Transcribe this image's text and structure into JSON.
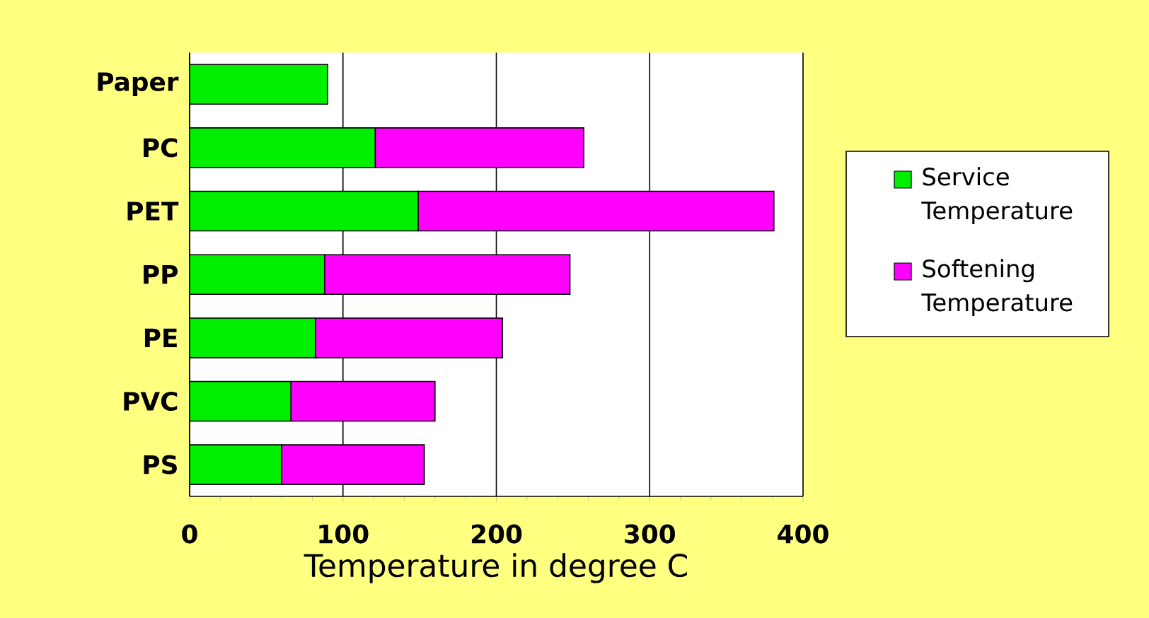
{
  "chart_data": {
    "type": "bar",
    "orientation": "horizontal",
    "stacked": true,
    "categories": [
      "Paper",
      "PC",
      "PET",
      "PP",
      "PE",
      "PVC",
      "PS"
    ],
    "series": [
      {
        "name": "Service Temperature",
        "color": "#00ee00",
        "values": [
          90,
          121,
          149,
          88,
          82,
          66,
          60
        ]
      },
      {
        "name": "Softening Temperature",
        "color": "#ff00ff",
        "values": [
          null,
          136,
          232,
          160,
          122,
          94,
          93
        ]
      }
    ],
    "xlabel": "Temperature in degree C",
    "xlim": [
      0,
      400
    ],
    "xticks": [
      0,
      100,
      200,
      300,
      400
    ],
    "grid": "x",
    "legend": "right"
  }
}
